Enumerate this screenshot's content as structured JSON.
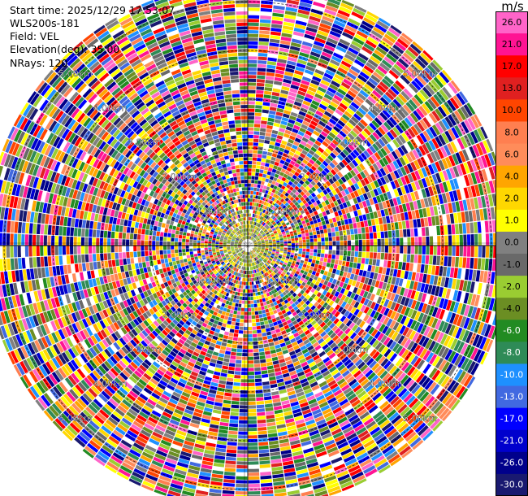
{
  "header": {
    "start_time": "Start time: 2025/12/29 17:53:07",
    "station": "WLS200s-181",
    "field": "Field: VEL",
    "elevation": "Elevation(deg): 35.00",
    "nrays": "NRays: 120"
  },
  "colorbar": {
    "unit": "m/s",
    "ticks": [
      "26.0",
      "21.0",
      "17.0",
      "13.0",
      "10.0",
      "8.0",
      "6.0",
      "4.0",
      "2.0",
      "1.0",
      "0.0",
      "-1.0",
      "-2.0",
      "-4.0",
      "-6.0",
      "-8.0",
      "-10.0",
      "-13.0",
      "-17.0",
      "-21.0",
      "-26.0",
      "-30.0"
    ],
    "colors": [
      "#ff64c8",
      "#ff1493",
      "#ff0000",
      "#e02020",
      "#ff4500",
      "#ff7f50",
      "#ff8c5a",
      "#ffa500",
      "#ffd700",
      "#ffff00",
      "#808080",
      "#696969",
      "#9acd32",
      "#6b8e23",
      "#228b22",
      "#2e8b57",
      "#1e90ff",
      "#4169e1",
      "#0000ff",
      "#0000cd",
      "#00008b",
      "#191970"
    ]
  },
  "chart_data": {
    "type": "ppi",
    "field": "VEL",
    "unit": "m/s",
    "nrays": 120,
    "range_rings_km": [
      1,
      2,
      3,
      4,
      5
    ],
    "ring_labels": [
      "1.00km",
      "2.00km",
      "3.00km",
      "4.00km",
      "5.00km"
    ],
    "max_range_km": 5.4,
    "near_range_km": 0.45,
    "near_range_palette": [
      "#9acd32",
      "#808080",
      "#ffd700",
      "#6b8e23"
    ]
  }
}
